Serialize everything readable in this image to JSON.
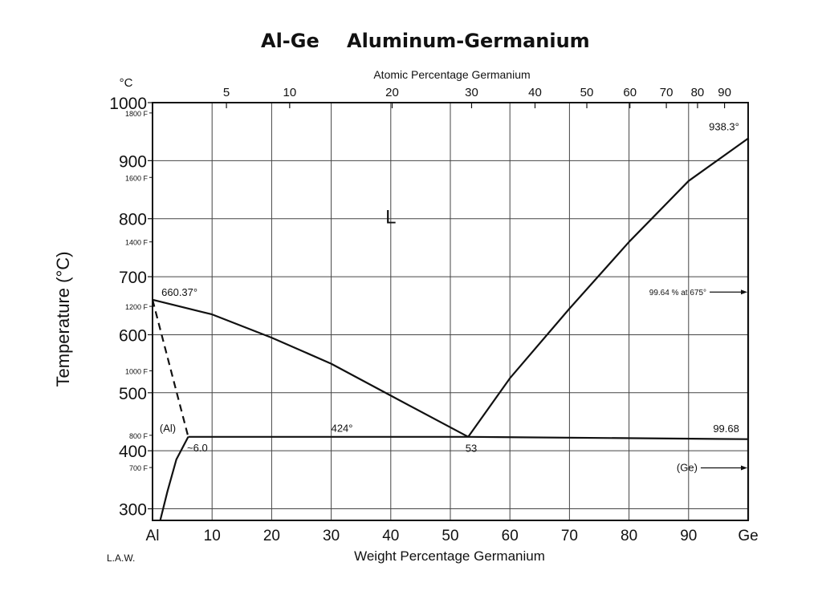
{
  "chart_data": {
    "type": "line",
    "title_abbr": "Al-Ge",
    "title": "Aluminum-Germanium",
    "xlabel": "Weight Percentage Germanium",
    "x2label": "Atomic Percentage Germanium",
    "ylabel": "Temperature (°C)",
    "yunit": "°C",
    "credit": "L.A.W.",
    "xlim": [
      0,
      100
    ],
    "ylim": [
      280,
      1000
    ],
    "grid": true,
    "x_end_labels": {
      "left": "Al",
      "right": "Ge"
    },
    "x_ticks": [
      10,
      20,
      30,
      40,
      50,
      60,
      70,
      80,
      90
    ],
    "x_tick_labels": [
      "10",
      "20",
      "30",
      "40",
      "50",
      "60",
      "70",
      "80",
      "90"
    ],
    "x2_ticks": [
      5,
      10,
      20,
      30,
      40,
      50,
      60,
      70,
      80,
      90
    ],
    "x2_tick_labels": [
      "5",
      "10",
      "20",
      "30",
      "40",
      "50",
      "60",
      "70",
      "80",
      "90"
    ],
    "y_ticks": [
      300,
      400,
      500,
      600,
      700,
      800,
      900,
      1000
    ],
    "y_tick_labels": [
      "300",
      "400",
      "500",
      "600",
      "700",
      "800",
      "900",
      "1000"
    ],
    "y_f_ticks": [
      {
        "celsius": 426.67,
        "label": "800 F"
      },
      {
        "celsius": 982.22,
        "label": "1800 F"
      },
      {
        "celsius": 871.11,
        "label": "1600 F"
      },
      {
        "celsius": 760.0,
        "label": "1400 F"
      },
      {
        "celsius": 648.89,
        "label": "1200 F"
      },
      {
        "celsius": 537.78,
        "label": "1000 F"
      },
      {
        "celsius": 371.11,
        "label": "700 F"
      }
    ],
    "series": [
      {
        "style": "solid",
        "x": [
          0,
          10,
          20,
          30,
          40,
          53
        ],
        "y": [
          660.37,
          635,
          595,
          550,
          495,
          424
        ]
      },
      {
        "style": "solid",
        "x": [
          53,
          60,
          70,
          80,
          90,
          100
        ],
        "y": [
          424,
          525,
          645,
          760,
          865,
          938.3
        ]
      },
      {
        "style": "solid",
        "x": [
          6.0,
          53,
          100
        ],
        "y": [
          424,
          424,
          420
        ]
      },
      {
        "style": "dashed",
        "x": [
          0,
          6.0
        ],
        "y": [
          660.37,
          424
        ]
      },
      {
        "style": "solid",
        "x": [
          1.3,
          2.5,
          4.0,
          6.0
        ],
        "y": [
          280,
          330,
          385,
          424
        ]
      },
      {
        "style": "solid",
        "x": [
          100,
          100
        ],
        "y": [
          280,
          938.3
        ]
      }
    ],
    "annotations": [
      {
        "text": "938.3°",
        "x": 98.5,
        "y": 952,
        "anchor": "end",
        "size": "normal"
      },
      {
        "text": "L",
        "x": 40,
        "y": 792,
        "anchor": "middle",
        "size": "big"
      },
      {
        "text": "660.37°",
        "x": 1.5,
        "y": 667,
        "anchor": "start",
        "size": "normal"
      },
      {
        "text": "99.64 % at 675°",
        "x": 93,
        "y": 668,
        "anchor": "end",
        "size": "small",
        "arrow": true
      },
      {
        "text": "424°",
        "x": 30,
        "y": 433,
        "anchor": "start",
        "size": "normal"
      },
      {
        "text": "(Al)",
        "x": 1.2,
        "y": 433,
        "anchor": "start",
        "size": "normal"
      },
      {
        "text": "~6.0",
        "x": 5.8,
        "y": 399,
        "anchor": "start",
        "size": "normal"
      },
      {
        "text": "53",
        "x": 53.5,
        "y": 398,
        "anchor": "middle",
        "size": "normal"
      },
      {
        "text": "99.68",
        "x": 98.5,
        "y": 432,
        "anchor": "end",
        "size": "normal"
      },
      {
        "text": "(Ge)",
        "x": 91.5,
        "y": 365,
        "anchor": "end",
        "size": "normal",
        "arrow": true
      }
    ],
    "line_color": "#111111",
    "grid_color": "#444444"
  }
}
